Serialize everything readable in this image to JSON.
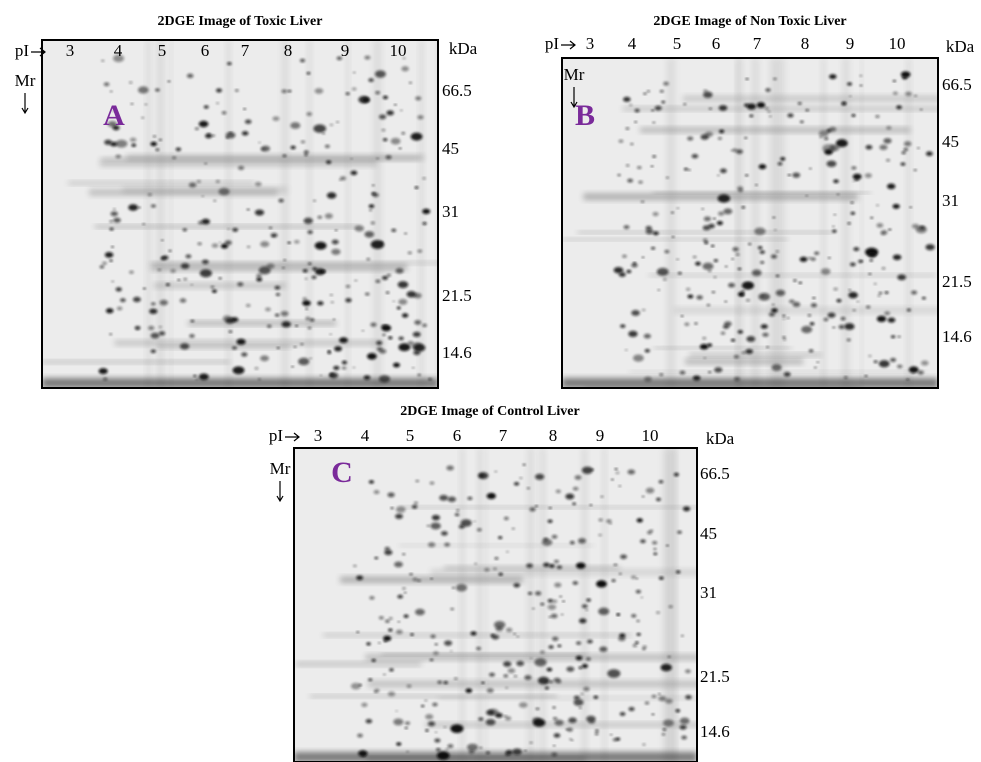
{
  "panels": [
    {
      "title": "2DGE Image of Toxic Liver",
      "letter": "A",
      "pi_label": "pI",
      "mr_label": "Mr",
      "unit": "kDa",
      "pi_ticks": [
        "3",
        "4",
        "5",
        "6",
        "7",
        "8",
        "9",
        "10"
      ],
      "mw_ticks": [
        "66.5",
        "45",
        "31",
        "21.5",
        "14.6"
      ]
    },
    {
      "title": "2DGE Image of Non Toxic Liver",
      "letter": "B",
      "pi_label": "pI",
      "mr_label": "Mr",
      "unit": "kDa",
      "pi_ticks": [
        "3",
        "4",
        "5",
        "6",
        "7",
        "8",
        "9",
        "10"
      ],
      "mw_ticks": [
        "66.5",
        "45",
        "31",
        "21.5",
        "14.6"
      ]
    },
    {
      "title": "2DGE Image of Control Liver",
      "letter": "C",
      "pi_label": "pI",
      "mr_label": "Mr",
      "unit": "kDa",
      "pi_ticks": [
        "3",
        "4",
        "5",
        "6",
        "7",
        "8",
        "9",
        "10"
      ],
      "mw_ticks": [
        "66.5",
        "45",
        "31",
        "21.5",
        "14.6"
      ]
    }
  ]
}
